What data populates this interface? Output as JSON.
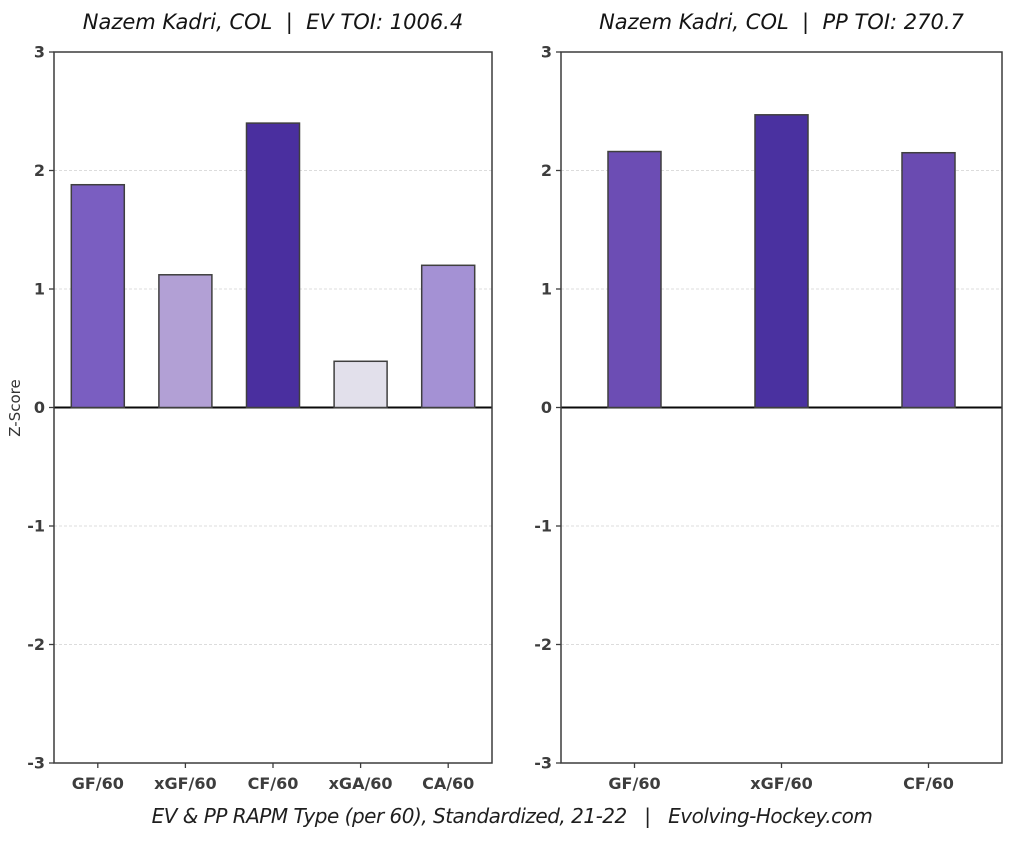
{
  "figure": {
    "background": "#ffffff",
    "caption": "EV & PP RAPM Type (per 60), Standardized, 21-22   |   Evolving-Hockey.com"
  },
  "ylabel": "Z-Score",
  "chart_data": [
    {
      "type": "bar",
      "title": "Nazem Kadri, COL  |  EV TOI: 1006.4",
      "categories": [
        "GF/60",
        "xGF/60",
        "CF/60",
        "xGA/60",
        "CA/60"
      ],
      "values": [
        1.88,
        1.12,
        2.4,
        0.39,
        1.2
      ],
      "bar_colors": [
        "#7a5ec1",
        "#b2a0d5",
        "#4a2f9f",
        "#e2e0eb",
        "#a491d4"
      ],
      "ylabel": "Z-Score",
      "xlabel": "",
      "ylim": [
        -3,
        3
      ],
      "yticks": [
        3,
        2,
        1,
        0,
        -1,
        -2,
        -3
      ],
      "grid": true,
      "zero_line": true,
      "legend": "none"
    },
    {
      "type": "bar",
      "title": "Nazem Kadri, COL  |  PP TOI: 270.7",
      "categories": [
        "GF/60",
        "xGF/60",
        "CF/60"
      ],
      "values": [
        2.16,
        2.47,
        2.15
      ],
      "bar_colors": [
        "#6c4db4",
        "#4a31a0",
        "#6a4bb1"
      ],
      "ylabel": "",
      "xlabel": "",
      "ylim": [
        -3,
        3
      ],
      "yticks": [
        3,
        2,
        1,
        0,
        -1,
        -2,
        -3
      ],
      "grid": true,
      "zero_line": true,
      "legend": "none"
    }
  ],
  "style": {
    "axis_color": "#3c3c3c",
    "bar_stroke_color": "#3f3f3f",
    "tick_label_color": "#3d3d3d",
    "grid_color": "#dcdcdc",
    "zero_line_color": "#0a0a0a",
    "title_color": "#141414",
    "caption_color": "#1f1f1f"
  }
}
